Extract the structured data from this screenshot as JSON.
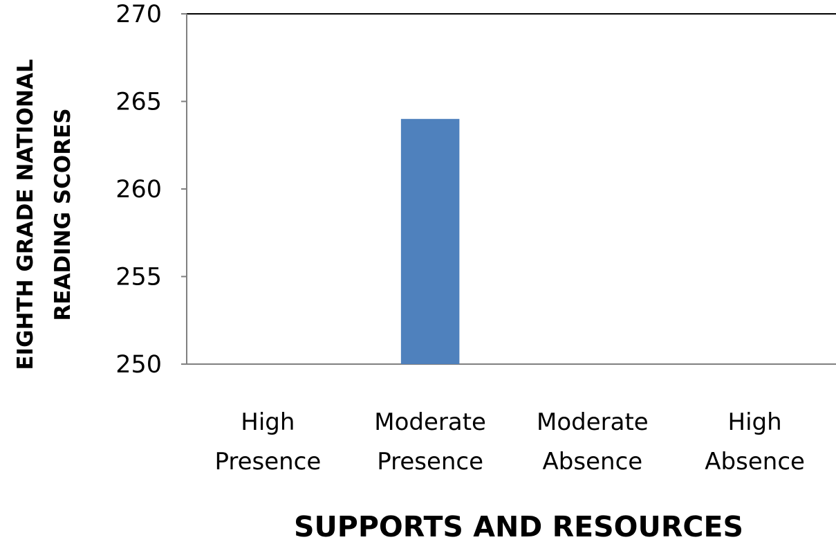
{
  "chart_data": {
    "type": "bar",
    "categories": [
      [
        "High",
        "Presence"
      ],
      [
        "Moderate",
        "Presence"
      ],
      [
        "Moderate",
        "Absence"
      ],
      [
        "High",
        "Absence"
      ]
    ],
    "values": [
      250,
      264,
      250,
      250
    ],
    "ylim": [
      250,
      270
    ],
    "yticks": [
      "250",
      "255",
      "260",
      "265",
      "270"
    ],
    "xlabel": "SUPPORTS AND RESOURCES",
    "ylabel_lines": [
      "EIGHTH GRADE  NATIONAL",
      "READING SCORES"
    ],
    "grid": false,
    "bar_color": "#4f81bd",
    "axis_color": "#7f7f7f"
  }
}
